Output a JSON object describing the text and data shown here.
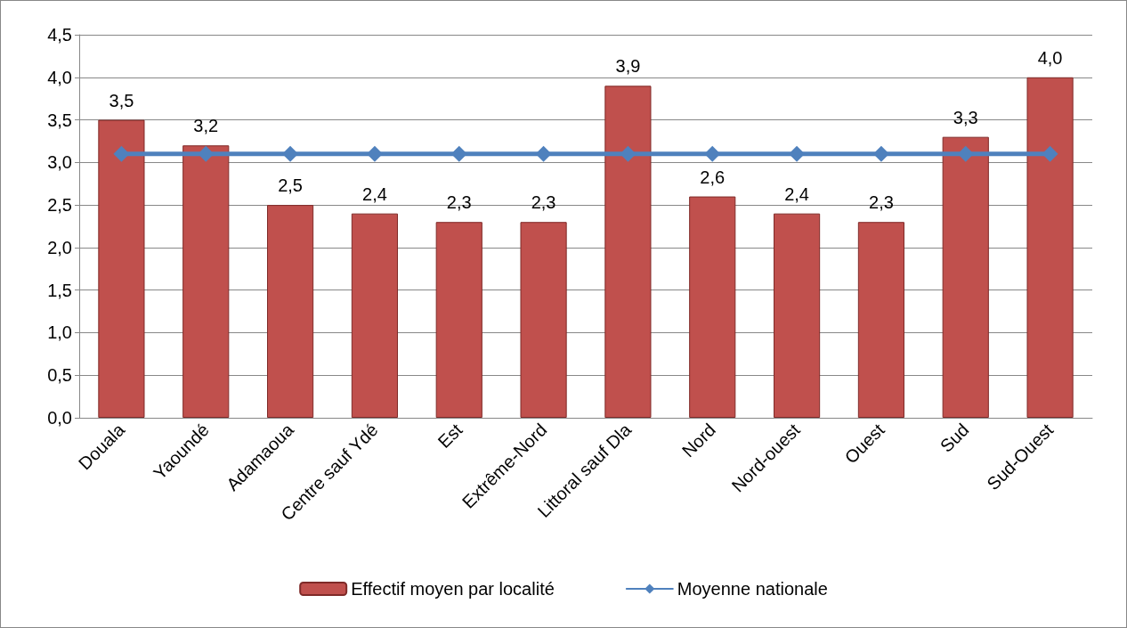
{
  "chart_data": {
    "type": "bar",
    "categories": [
      "Douala",
      "Yaoundé",
      "Adamaoua",
      "Centre sauf Ydé",
      "Est",
      "Extrême-Nord",
      "Littoral sauf Dla",
      "Nord",
      "Nord-ouest",
      "Ouest",
      "Sud",
      "Sud-Ouest"
    ],
    "series": [
      {
        "name": "Effectif moyen par localité",
        "color": "#c0504d",
        "values": [
          3.5,
          3.2,
          2.5,
          2.4,
          2.3,
          2.3,
          3.9,
          2.6,
          2.4,
          2.3,
          3.3,
          4.0
        ],
        "value_labels": [
          "3,5",
          "3,2",
          "2,5",
          "2,4",
          "2,3",
          "2,3",
          "3,9",
          "2,6",
          "2,4",
          "2,3",
          "3,3",
          "4,0"
        ]
      },
      {
        "name": "Moyenne nationale",
        "type": "line",
        "color": "#4f81bd",
        "marker": "diamond",
        "values": [
          3.1,
          3.1,
          3.1,
          3.1,
          3.1,
          3.1,
          3.1,
          3.1,
          3.1,
          3.1,
          3.1,
          3.1
        ]
      }
    ],
    "ylim": [
      0,
      4.5
    ],
    "yticks": [
      {
        "value": 0,
        "label": "0,0"
      },
      {
        "value": 0.5,
        "label": "0,5"
      },
      {
        "value": 1,
        "label": "1,0"
      },
      {
        "value": 1.5,
        "label": "1,5"
      },
      {
        "value": 2,
        "label": "2,0"
      },
      {
        "value": 2.5,
        "label": "2,5"
      },
      {
        "value": 3,
        "label": "3,0"
      },
      {
        "value": 3.5,
        "label": "3,5"
      },
      {
        "value": 4,
        "label": "4,0"
      },
      {
        "value": 4.5,
        "label": "4,5"
      }
    ],
    "grid": "y",
    "legend": "bottom"
  }
}
